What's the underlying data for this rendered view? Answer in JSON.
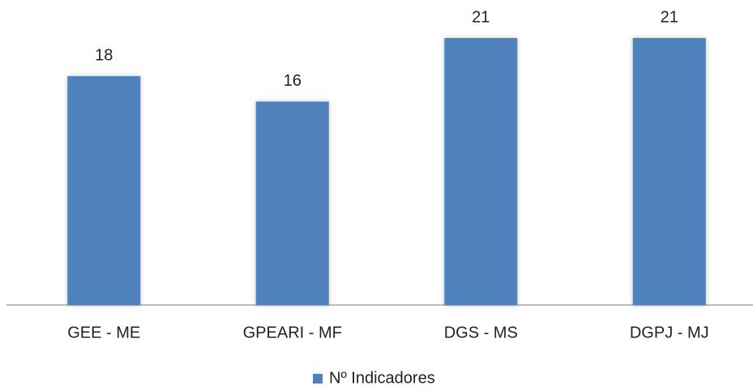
{
  "chart_data": {
    "type": "bar",
    "categories": [
      "GEE - ME",
      "GPEARI - MF",
      "DGS - MS",
      "DGPJ - MJ"
    ],
    "series": [
      {
        "name": "Nº Indicadores",
        "color": "#4f81bd",
        "values": [
          18,
          16,
          21,
          21
        ]
      }
    ],
    "ylim": [
      0,
      21
    ],
    "legend": "bottom"
  }
}
